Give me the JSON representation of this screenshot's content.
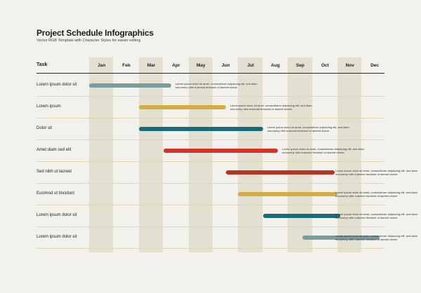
{
  "title": "Project Schedule Infographics",
  "subtitle": "Vector RGB Template with Character Styles for easier editing",
  "task_header": "Task",
  "months": [
    "Jan",
    "Feb",
    "Mar",
    "Apr",
    "May",
    "Jun",
    "Jul",
    "Aug",
    "Sep",
    "Oct",
    "Nov",
    "Dec"
  ],
  "colors": {
    "background": "#f3f1ec",
    "band": "#e3e0d1",
    "grey_blue": "#7a9c9d",
    "mustard": "#d2ad3f",
    "teal": "#1b6a7c",
    "red": "#d5332a",
    "dark_red": "#b63421"
  },
  "tasks": [
    {
      "label": "Lorem ipsum dolor sit",
      "start": 0.0,
      "end": 3.3,
      "color": "#7a9c9d",
      "note": "Lorem ipsum dolor sit amet, consectetuer adipiscing elit, sed diam nonummy nibh euismod tincidunt ut laoreet dolore"
    },
    {
      "label": "Lorem ipsum",
      "start": 2.0,
      "end": 5.5,
      "color": "#d2ad3f",
      "note": "Lorem ipsum dolor sit amet, consectetuer adipiscing elit, sed diam nonummy nibh euismod tincidunt ut laoreet dolore"
    },
    {
      "label": "Dolor sit",
      "start": 2.0,
      "end": 7.0,
      "color": "#1b6a7c",
      "note": "Lorem ipsum dolor sit amet, consectetuer adipiscing elit, sed diam nonummy nibh euismod tincidunt ut laoreet dolore"
    },
    {
      "label": "Amet diam sed elit",
      "start": 3.0,
      "end": 7.6,
      "color": "#d5332a",
      "note": "Lorem ipsum dolor sit amet, consectetuer adipiscing elit, sed diam nonummy nibh euismod tincidunt ut laoreet dolore"
    },
    {
      "label": "Sed nibh ut lacreet",
      "start": 5.5,
      "end": 9.9,
      "color": "#b63421",
      "note": "Lorem ipsum dolor sit amet, consectetuer adipiscing elit, sed diam nonummy nibh euismod tincidunt ut laoreet dolore"
    },
    {
      "label": "Eusimod ut tincidunt",
      "start": 6.0,
      "end": 10.0,
      "color": "#d2ad3f",
      "note": "Lorem ipsum dolor sit amet, consectetuer adipiscing elit, sed diam nonummy nibh euismod tincidunt ut laoreet dolore"
    },
    {
      "label": "Lorem ipsum dolor sit",
      "start": 7.0,
      "end": 10.1,
      "color": "#1b6a7c",
      "note": "Lorem ipsum dolor sit amet, consectetuer adipiscing elit, sed diam nonummy nibh euismod tincidunt ut laoreet dolore"
    },
    {
      "label": "Lorem ipsum dolor sit",
      "start": 8.6,
      "end": 11.7,
      "color": "#7a9c9d",
      "note": "Lorem ipsum dolor sit amet, consectetuer adipiscing elit, sed diam nonummy nibh euismod tincidunt ut laoreet dolore"
    }
  ]
}
